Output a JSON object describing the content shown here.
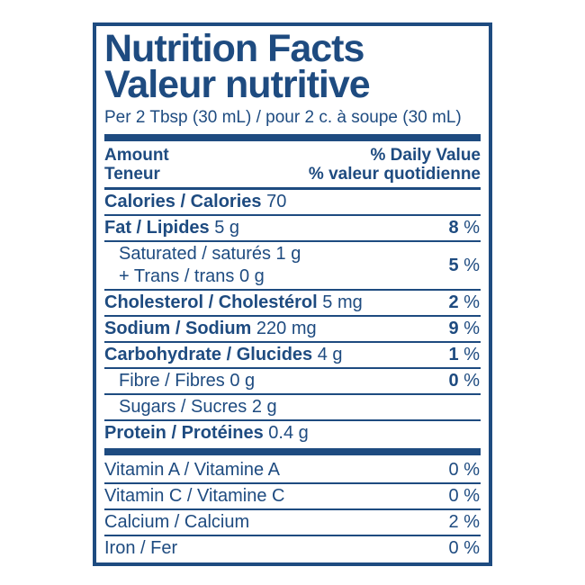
{
  "colors": {
    "navy": "#1e4b80",
    "background": "#ffffff"
  },
  "label": {
    "title_en": "Nutrition Facts",
    "title_fr": "Valeur nutritive",
    "serving_line": "Per 2 Tbsp (30 mL) / pour 2 c. à soupe (30 mL)",
    "column_headers": {
      "amount_en": "Amount",
      "amount_fr": "Teneur",
      "daily_value_en": "% Daily Value",
      "daily_value_fr": "% valeur quotidienne"
    },
    "percent_sign": "%",
    "rows": [
      {
        "name": "calories",
        "label": "Calories / Calories",
        "amount": "70",
        "bold": true,
        "indent": false,
        "dv": null,
        "dv_bold": false,
        "separator_after": "thin"
      },
      {
        "name": "fat",
        "label": "Fat / Lipides",
        "amount": "5 g",
        "bold": true,
        "indent": false,
        "dv": "8",
        "dv_bold": true,
        "separator_after": "thin"
      },
      {
        "name": "saturated-trans",
        "lines": [
          {
            "label": "Saturated / saturés",
            "amount": "1 g"
          },
          {
            "label": "+ Trans / trans",
            "amount": "0 g"
          }
        ],
        "bold": false,
        "indent": true,
        "dv": "5",
        "dv_bold": true,
        "separator_after": "thin"
      },
      {
        "name": "cholesterol",
        "label": "Cholesterol / Cholestérol",
        "amount": "5 mg",
        "bold": true,
        "indent": false,
        "dv": "2",
        "dv_bold": true,
        "separator_after": "thin"
      },
      {
        "name": "sodium",
        "label": "Sodium / Sodium",
        "amount": "220 mg",
        "bold": true,
        "indent": false,
        "dv": "9",
        "dv_bold": true,
        "separator_after": "thin"
      },
      {
        "name": "carbohydrate",
        "label": "Carbohydrate / Glucides",
        "amount": "4 g",
        "bold": true,
        "indent": false,
        "dv": "1",
        "dv_bold": true,
        "separator_after": "thin"
      },
      {
        "name": "fibre",
        "label": "Fibre / Fibres",
        "amount": "0 g",
        "bold": false,
        "indent": true,
        "dv": "0",
        "dv_bold": true,
        "separator_after": "thin"
      },
      {
        "name": "sugars",
        "label": "Sugars / Sucres",
        "amount": "2 g",
        "bold": false,
        "indent": true,
        "dv": null,
        "dv_bold": false,
        "separator_after": "thin"
      },
      {
        "name": "protein",
        "label": "Protein / Protéines",
        "amount": "0.4 g",
        "bold": true,
        "indent": false,
        "dv": null,
        "dv_bold": false,
        "separator_after": "thick"
      },
      {
        "name": "vitamin-a",
        "label": "Vitamin A / Vitamine A",
        "amount": "",
        "bold": false,
        "indent": false,
        "dv": "0",
        "dv_bold": false,
        "separator_after": "thin"
      },
      {
        "name": "vitamin-c",
        "label": "Vitamin C / Vitamine C",
        "amount": "",
        "bold": false,
        "indent": false,
        "dv": "0",
        "dv_bold": false,
        "separator_after": "thin"
      },
      {
        "name": "calcium",
        "label": "Calcium / Calcium",
        "amount": "",
        "bold": false,
        "indent": false,
        "dv": "2",
        "dv_bold": false,
        "separator_after": "thin"
      },
      {
        "name": "iron",
        "label": "Iron / Fer",
        "amount": "",
        "bold": false,
        "indent": false,
        "dv": "0",
        "dv_bold": false,
        "separator_after": "none"
      }
    ]
  }
}
